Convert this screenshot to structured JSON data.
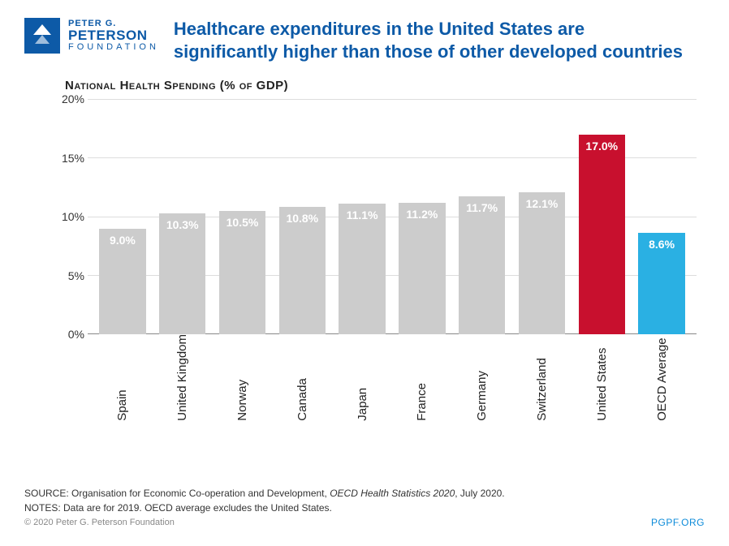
{
  "logo": {
    "line1": "PETER G.",
    "line2": "PETERSON",
    "line3": "FOUNDATION"
  },
  "title": "Healthcare expenditures in the United States are significantly higher than those of other developed countries",
  "subtitle": "National Health Spending (% of GDP)",
  "chart": {
    "type": "bar",
    "ymax": 20,
    "ytick_step": 5,
    "yticks": [
      "0%",
      "5%",
      "10%",
      "15%",
      "20%"
    ],
    "grid_color": "#dddddd",
    "axis_color": "#888888",
    "background_color": "#ffffff",
    "bar_width_ratio": 0.78,
    "label_fontsize": 14,
    "label_color": "#ffffff",
    "xlabel_fontsize": 15,
    "categories": [
      "Spain",
      "United Kingdom",
      "Norway",
      "Canada",
      "Japan",
      "France",
      "Germany",
      "Switzerland",
      "United States",
      "OECD Average"
    ],
    "values": [
      9.0,
      10.3,
      10.5,
      10.8,
      11.1,
      11.2,
      11.7,
      12.1,
      17.0,
      8.6
    ],
    "display_values": [
      "9.0%",
      "10.3%",
      "10.5%",
      "10.8%",
      "11.1%",
      "11.2%",
      "11.7%",
      "12.1%",
      "17.0%",
      "8.6%"
    ],
    "bar_colors": [
      "#cccccc",
      "#cccccc",
      "#cccccc",
      "#cccccc",
      "#cccccc",
      "#cccccc",
      "#cccccc",
      "#cccccc",
      "#c8102e",
      "#2ab0e3"
    ]
  },
  "footer": {
    "source_prefix": "SOURCE: Organisation for Economic Co-operation and Development, ",
    "source_italic": "OECD Health Statistics 2020",
    "source_suffix": ", July 2020.",
    "notes": "NOTES: Data are for 2019. OECD average excludes the United States.",
    "copyright": "© 2020 Peter G. Peterson Foundation",
    "site": "PGPF.ORG"
  }
}
